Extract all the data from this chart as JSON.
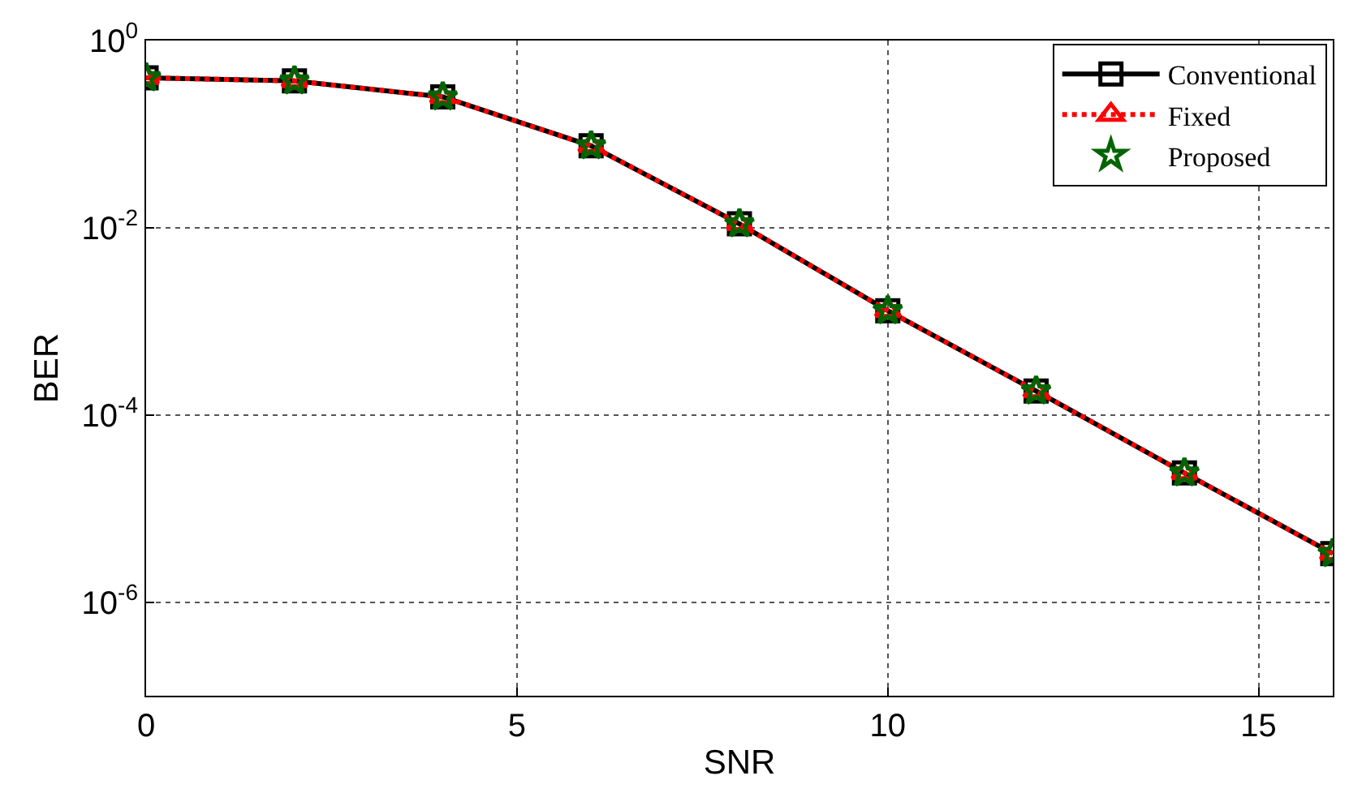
{
  "chart_data": {
    "type": "line",
    "xlabel": "SNR",
    "ylabel": "BER",
    "x": [
      0,
      2,
      4,
      6,
      8,
      10,
      12,
      14,
      16
    ],
    "xlim": [
      0,
      16
    ],
    "xticks": [
      0,
      5,
      10,
      15
    ],
    "ylim": [
      1e-07,
      1
    ],
    "yticks": [
      {
        "value": 1,
        "label": "10$^{0}$"
      },
      {
        "value": 0.01,
        "label": "10$^{-2}$"
      },
      {
        "value": 0.0001,
        "label": "10$^{-4}$"
      },
      {
        "value": 1e-06,
        "label": "10$^{-6}$"
      }
    ],
    "log": "y",
    "grid": true,
    "legend": "top right",
    "series": [
      {
        "name": "Conventional",
        "color": "#000000",
        "marker": "square",
        "line_style": "solid",
        "values": [
          0.4,
          0.37,
          0.25,
          0.075,
          0.011,
          0.0013,
          0.00018,
          2.4e-05,
          3.3e-06
        ]
      },
      {
        "name": "Fixed",
        "color": "#ff0000",
        "marker": "triangle",
        "line_style": "dotted",
        "values": [
          0.4,
          0.37,
          0.25,
          0.075,
          0.011,
          0.0013,
          0.00018,
          2.4e-05,
          3.3e-06
        ]
      },
      {
        "name": "Proposed",
        "color": "#006400",
        "type": "scatter",
        "marker": "star",
        "values": [
          0.4,
          0.37,
          0.25,
          0.075,
          0.011,
          0.0013,
          0.00018,
          2.4e-05,
          3.3e-06
        ]
      }
    ]
  }
}
